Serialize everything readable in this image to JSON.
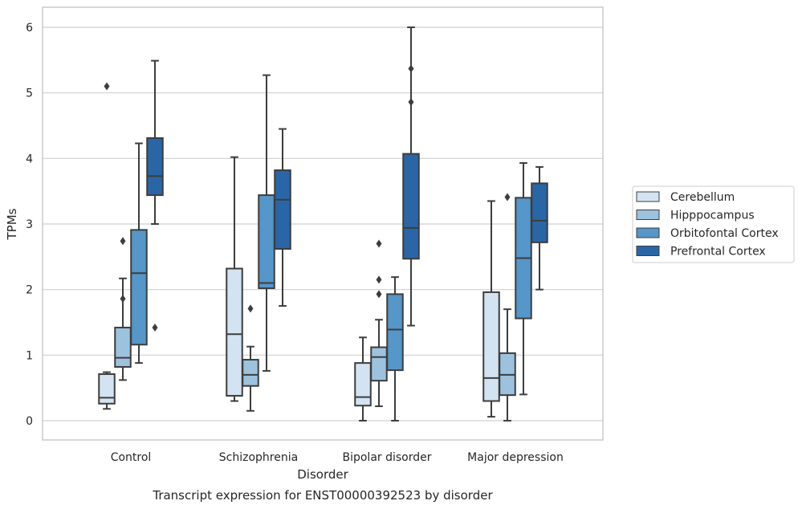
{
  "chart_data": {
    "type": "box",
    "title": "Transcript expression for ENST00000392523 by disorder",
    "xlabel": "Disorder",
    "ylabel": "TPMs",
    "ylim": [
      -0.3,
      6.3
    ],
    "yticks": [
      0,
      1,
      2,
      3,
      4,
      5,
      6
    ],
    "grid": true,
    "legend_position": "right",
    "categories": [
      "Control",
      "Schizophrenia",
      "Bipolar disorder",
      "Major depression"
    ],
    "series": [
      {
        "name": "Cerebellum",
        "color": "#d4e3f1",
        "boxes": [
          {
            "whislo": 0.18,
            "q1": 0.26,
            "med": 0.35,
            "q3": 0.71,
            "whishi": 0.74,
            "fliers": [
              5.1
            ]
          },
          {
            "whislo": 0.3,
            "q1": 0.38,
            "med": 1.32,
            "q3": 2.32,
            "whishi": 4.02,
            "fliers": []
          },
          {
            "whislo": 0.0,
            "q1": 0.23,
            "med": 0.36,
            "q3": 0.88,
            "whishi": 1.27,
            "fliers": []
          },
          {
            "whislo": 0.06,
            "q1": 0.3,
            "med": 0.65,
            "q3": 1.96,
            "whishi": 3.35,
            "fliers": []
          }
        ]
      },
      {
        "name": "Hipppocampus",
        "color": "#9dc2de",
        "boxes": [
          {
            "whislo": 0.62,
            "q1": 0.82,
            "med": 0.96,
            "q3": 1.42,
            "whishi": 2.17,
            "fliers": [
              2.74,
              1.86
            ]
          },
          {
            "whislo": 0.15,
            "q1": 0.53,
            "med": 0.7,
            "q3": 0.93,
            "whishi": 1.13,
            "fliers": [
              1.71
            ]
          },
          {
            "whislo": 0.22,
            "q1": 0.61,
            "med": 0.97,
            "q3": 1.12,
            "whishi": 1.54,
            "fliers": [
              2.7,
              2.15,
              1.93
            ]
          },
          {
            "whislo": 0.0,
            "q1": 0.39,
            "med": 0.7,
            "q3": 1.03,
            "whishi": 1.7,
            "fliers": [
              3.41
            ]
          }
        ]
      },
      {
        "name": "Orbitofontal Cortex",
        "color": "#5696c8",
        "boxes": [
          {
            "whislo": 0.88,
            "q1": 1.16,
            "med": 2.25,
            "q3": 2.91,
            "whishi": 4.23,
            "fliers": []
          },
          {
            "whislo": 0.76,
            "q1": 2.02,
            "med": 2.1,
            "q3": 3.44,
            "whishi": 5.27,
            "fliers": []
          },
          {
            "whislo": 0.0,
            "q1": 0.77,
            "med": 1.39,
            "q3": 1.93,
            "whishi": 2.19,
            "fliers": []
          },
          {
            "whislo": 0.4,
            "q1": 1.56,
            "med": 2.48,
            "q3": 3.4,
            "whishi": 3.93,
            "fliers": []
          }
        ]
      },
      {
        "name": "Prefrontal Cortex",
        "color": "#2a66a6",
        "boxes": [
          {
            "whislo": 3.0,
            "q1": 3.44,
            "med": 3.73,
            "q3": 4.31,
            "whishi": 5.49,
            "fliers": [
              1.42
            ]
          },
          {
            "whislo": 1.75,
            "q1": 2.62,
            "med": 3.37,
            "q3": 3.82,
            "whishi": 4.45,
            "fliers": []
          },
          {
            "whislo": 1.45,
            "q1": 2.47,
            "med": 2.94,
            "q3": 4.07,
            "whishi": 6.0,
            "fliers": [
              5.37,
              4.86
            ]
          },
          {
            "whislo": 2.0,
            "q1": 2.72,
            "med": 3.05,
            "q3": 3.62,
            "whishi": 3.87,
            "fliers": []
          }
        ]
      }
    ]
  }
}
